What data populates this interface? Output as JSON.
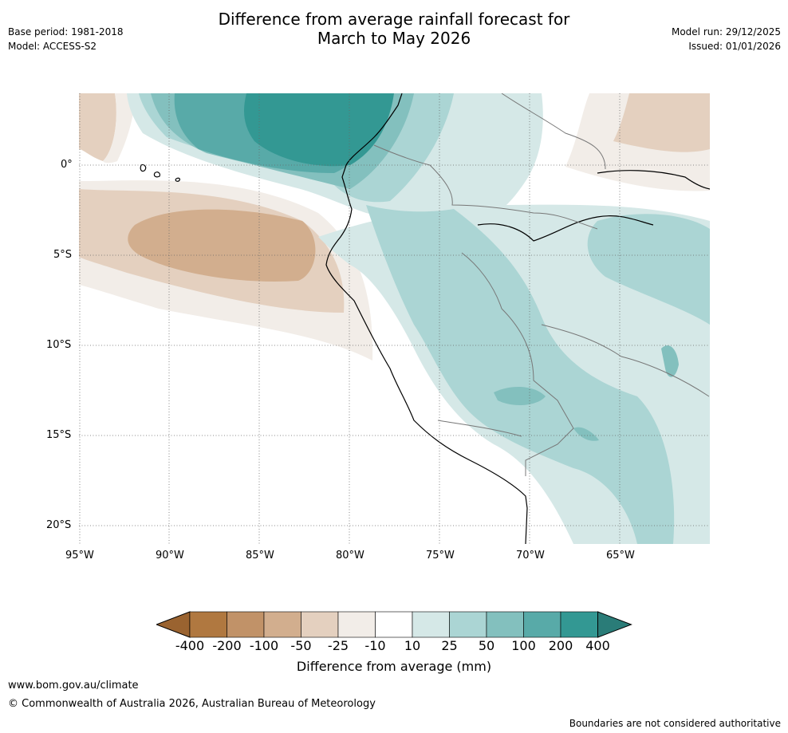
{
  "header": {
    "title_line1": "Difference from average rainfall forecast for",
    "title_line2": "March to May 2026",
    "base_period": "Base period: 1981-2018",
    "model": "Model: ACCESS-S2",
    "model_run": "Model run: 29/12/2025",
    "issued": "Issued: 01/01/2026"
  },
  "map": {
    "lat_labels": [
      "0°",
      "5°S",
      "10°S",
      "15°S",
      "20°S"
    ],
    "lon_labels": [
      "95°W",
      "90°W",
      "85°W",
      "80°W",
      "75°W",
      "70°W",
      "65°W"
    ]
  },
  "colorbar": {
    "tick_labels": [
      "-400",
      "-200",
      "-100",
      "-50",
      "-25",
      "-10",
      "10",
      "25",
      "50",
      "100",
      "200",
      "400"
    ],
    "colors": [
      "#9a6330",
      "#b07840",
      "#c19268",
      "#d2ae8e",
      "#e4d0bf",
      "#f2ede8",
      "#ffffff",
      "#d5e8e7",
      "#abd5d4",
      "#83c0be",
      "#58aaa8",
      "#339893",
      "#2a7c78"
    ],
    "label": "Difference from average (mm)"
  },
  "footer": {
    "url": "www.bom.gov.au/climate",
    "copyright": "© Commonwealth of Australia 2026, Australian Bureau of Meteorology",
    "disclaimer": "Boundaries are not considered authoritative"
  }
}
